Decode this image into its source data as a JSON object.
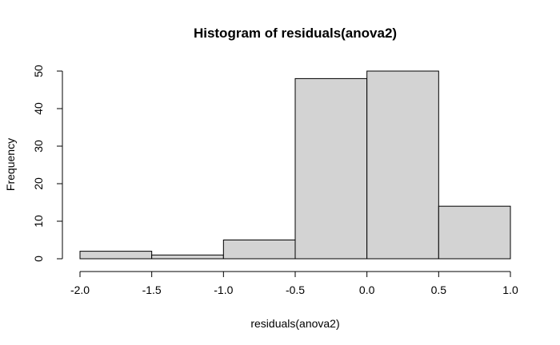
{
  "chart_data": {
    "type": "bar",
    "title": "Histogram of residuals(anova2)",
    "xlabel": "residuals(anova2)",
    "ylabel": "Frequency",
    "bins": [
      {
        "x0": -2.0,
        "x1": -1.5,
        "count": 2
      },
      {
        "x0": -1.5,
        "x1": -1.0,
        "count": 1
      },
      {
        "x0": -1.0,
        "x1": -0.5,
        "count": 5
      },
      {
        "x0": -0.5,
        "x1": 0.0,
        "count": 48
      },
      {
        "x0": 0.0,
        "x1": 0.5,
        "count": 50
      },
      {
        "x0": 0.5,
        "x1": 1.0,
        "count": 14
      }
    ],
    "xlim": [
      -2.0,
      1.0
    ],
    "ylim": [
      0,
      50
    ],
    "xticks": [
      -2.0,
      -1.5,
      -1.0,
      -0.5,
      0.0,
      0.5,
      1.0
    ],
    "xtick_labels": [
      "-2.0",
      "-1.5",
      "-1.0",
      "-0.5",
      "0.0",
      "0.5",
      "1.0"
    ],
    "yticks": [
      0,
      10,
      20,
      30,
      40,
      50
    ],
    "ytick_labels": [
      "0",
      "10",
      "20",
      "30",
      "40",
      "50"
    ],
    "bar_color": "#d3d3d3",
    "grid": false,
    "legend": "none"
  }
}
